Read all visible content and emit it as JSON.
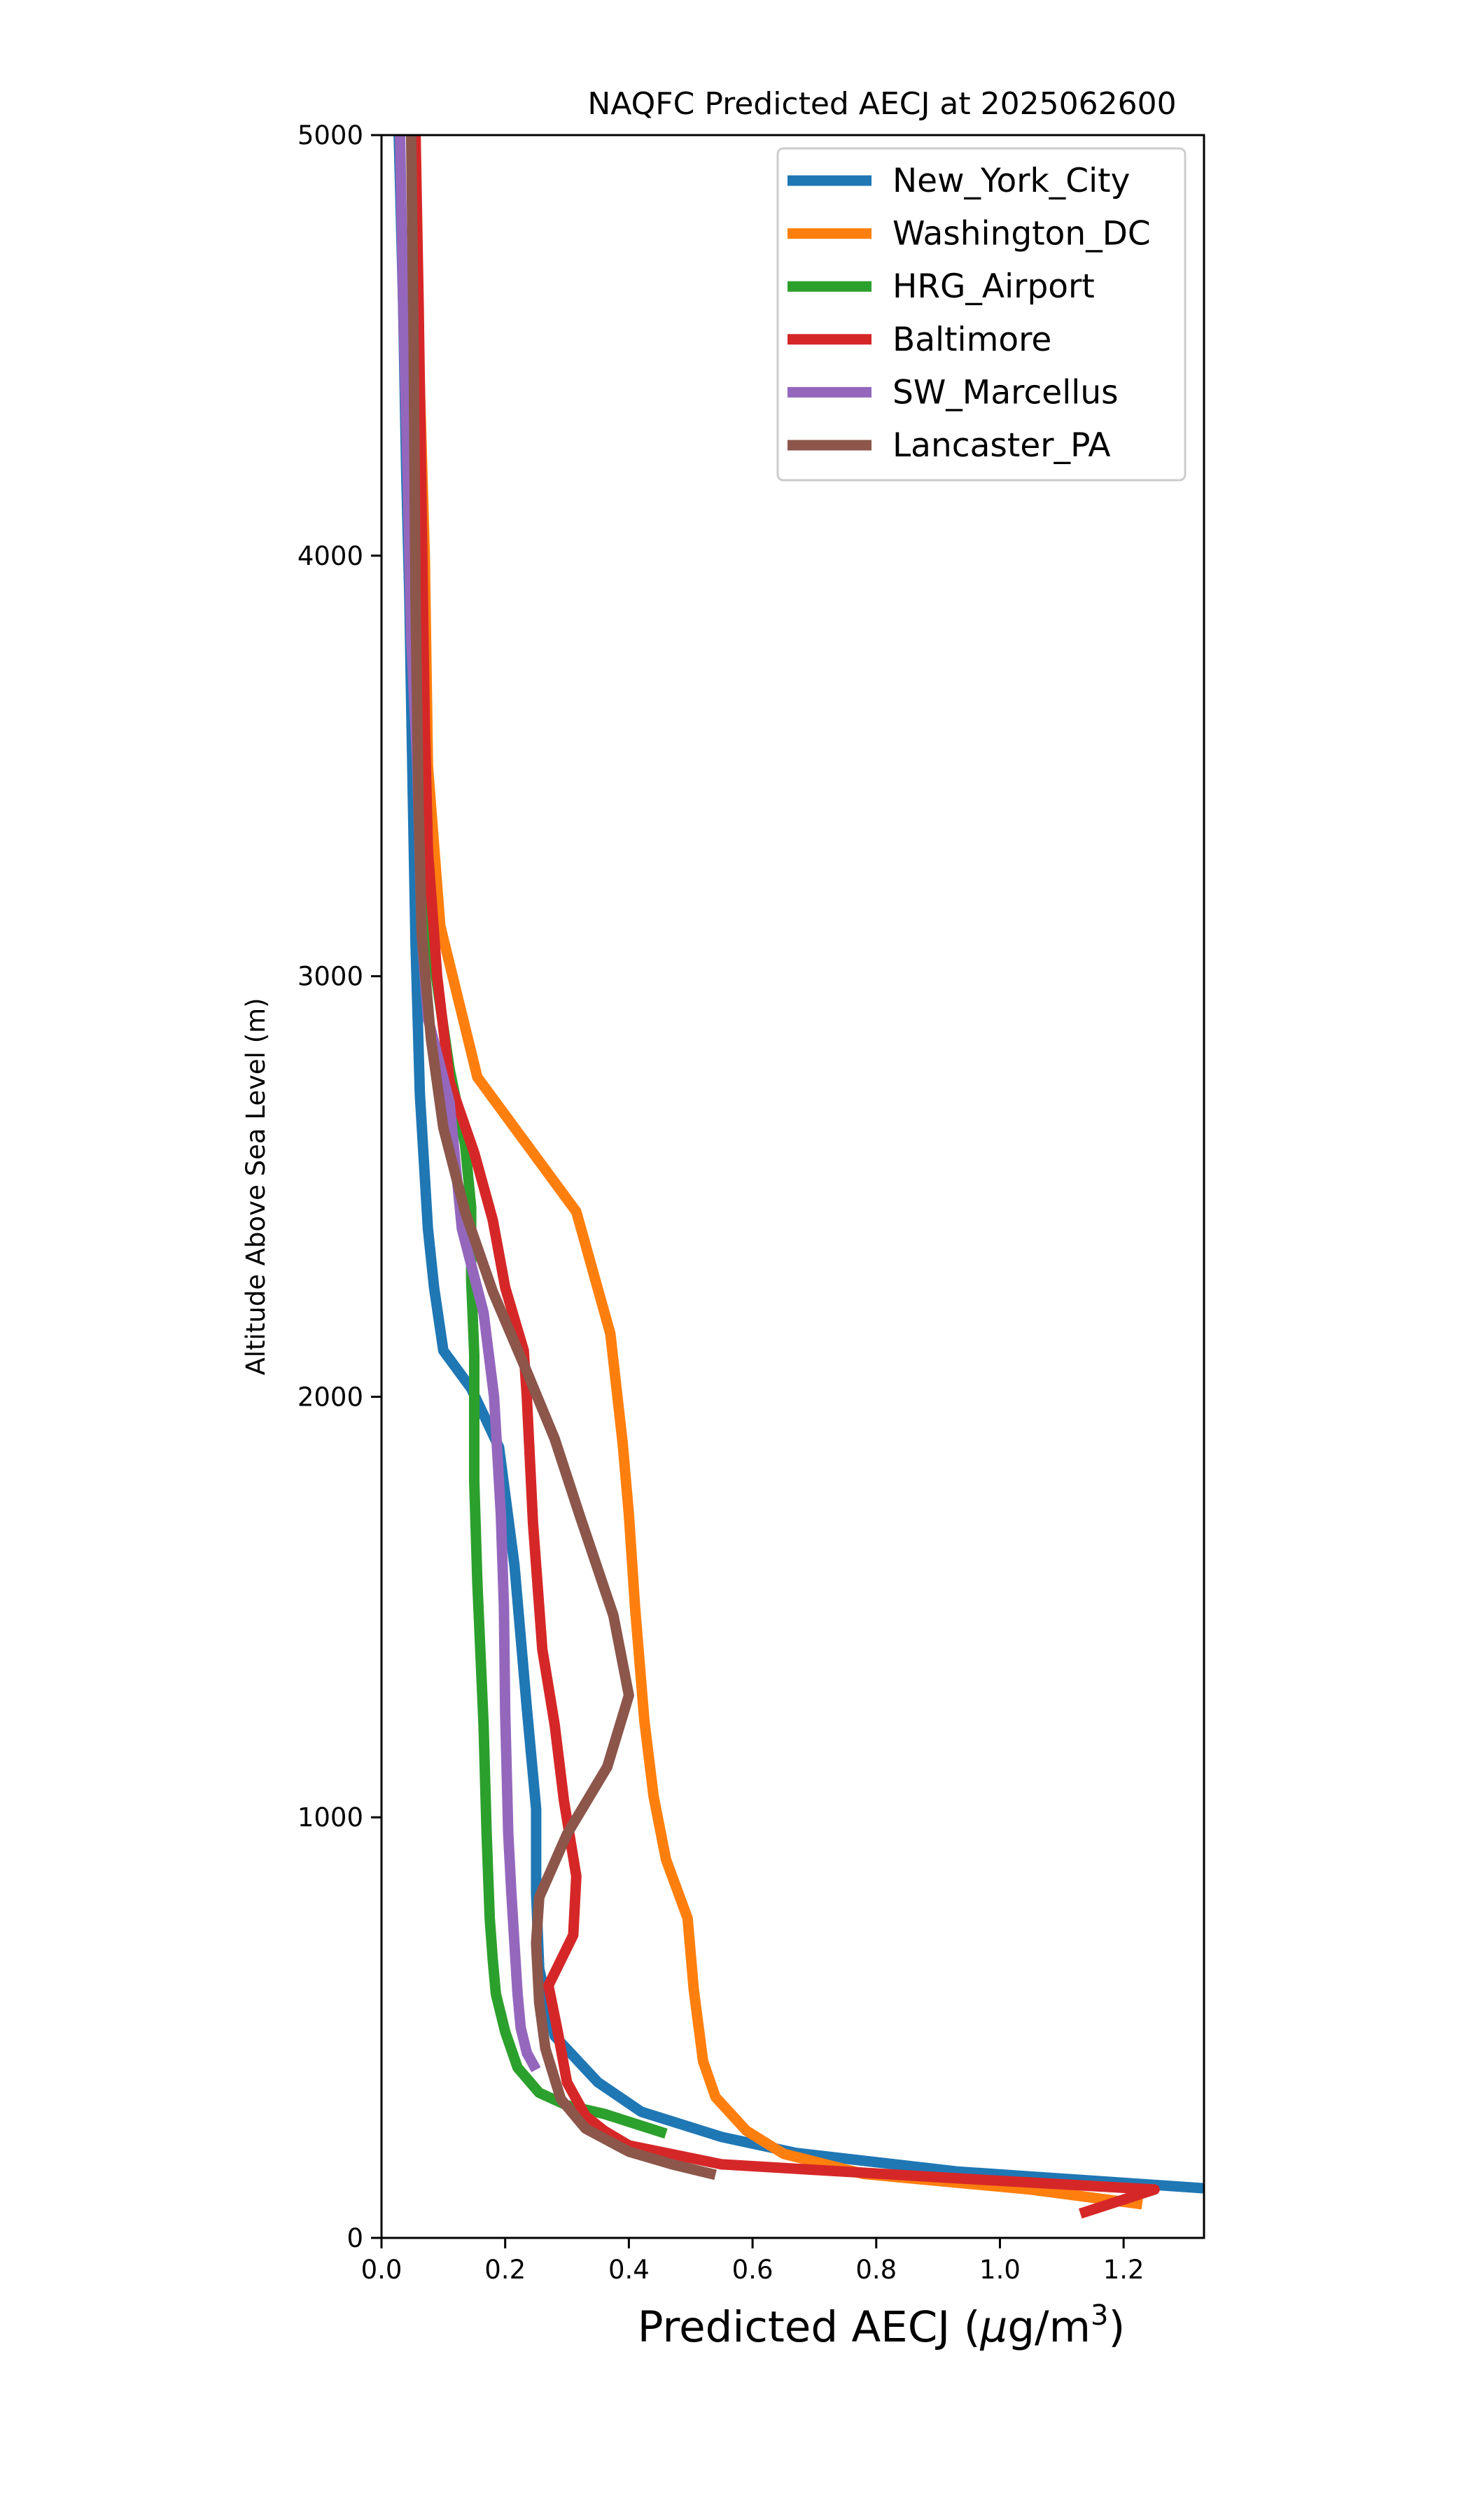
{
  "chart_data": {
    "type": "line",
    "title": "NAQFC Predicted AECJ at 2025062600",
    "xlabel": "Predicted AECJ (μg/m³)",
    "xlabel_base": "Predicted AECJ (",
    "xlabel_mu": "μ",
    "xlabel_unit": "g/m",
    "xlabel_sup": "3",
    "xlabel_close": ")",
    "ylabel": "Altitude Above Sea Level (m)",
    "xlim": [
      0,
      1.33
    ],
    "ylim": [
      0,
      5000
    ],
    "xticks": [
      0.0,
      0.2,
      0.4,
      0.6,
      0.8,
      1.0,
      1.2
    ],
    "xtick_labels": [
      "0.0",
      "0.2",
      "0.4",
      "0.6",
      "0.8",
      "1.0",
      "1.2"
    ],
    "yticks": [
      0,
      1000,
      2000,
      3000,
      4000,
      5000
    ],
    "ytick_labels": [
      "0",
      "1000",
      "2000",
      "3000",
      "4000",
      "5000"
    ],
    "legend_position": "top-right",
    "grid": false,
    "series": [
      {
        "name": "New_York_City",
        "color": "#1f77b4",
        "points": [
          [
            1.33,
            118
          ],
          [
            0.93,
            158
          ],
          [
            0.67,
            202
          ],
          [
            0.55,
            240
          ],
          [
            0.42,
            300
          ],
          [
            0.35,
            370
          ],
          [
            0.28,
            480
          ],
          [
            0.255,
            640
          ],
          [
            0.25,
            820
          ],
          [
            0.25,
            1020
          ],
          [
            0.235,
            1260
          ],
          [
            0.215,
            1600
          ],
          [
            0.19,
            1880
          ],
          [
            0.145,
            2020
          ],
          [
            0.1,
            2110
          ],
          [
            0.085,
            2260
          ],
          [
            0.075,
            2400
          ],
          [
            0.062,
            2720
          ],
          [
            0.055,
            3080
          ],
          [
            0.05,
            3480
          ],
          [
            0.045,
            3900
          ],
          [
            0.04,
            4200
          ],
          [
            0.035,
            4600
          ],
          [
            0.028,
            5000
          ]
        ]
      },
      {
        "name": "Washington_DC",
        "color": "#ff7f0e",
        "points": [
          [
            1.23,
            80
          ],
          [
            1.05,
            115
          ],
          [
            0.78,
            152
          ],
          [
            0.65,
            200
          ],
          [
            0.59,
            255
          ],
          [
            0.54,
            335
          ],
          [
            0.52,
            420
          ],
          [
            0.505,
            590
          ],
          [
            0.495,
            760
          ],
          [
            0.46,
            900
          ],
          [
            0.44,
            1050
          ],
          [
            0.425,
            1230
          ],
          [
            0.41,
            1500
          ],
          [
            0.4,
            1720
          ],
          [
            0.39,
            1890
          ],
          [
            0.37,
            2150
          ],
          [
            0.315,
            2440
          ],
          [
            0.155,
            2760
          ],
          [
            0.095,
            3120
          ],
          [
            0.075,
            3500
          ],
          [
            0.07,
            4000
          ],
          [
            0.06,
            4500
          ],
          [
            0.055,
            5000
          ]
        ]
      },
      {
        "name": "HRG_Airport",
        "color": "#2ca02c",
        "points": [
          [
            0.46,
            248
          ],
          [
            0.36,
            295
          ],
          [
            0.3,
            315
          ],
          [
            0.255,
            345
          ],
          [
            0.22,
            405
          ],
          [
            0.2,
            490
          ],
          [
            0.185,
            580
          ],
          [
            0.18,
            660
          ],
          [
            0.175,
            760
          ],
          [
            0.17,
            960
          ],
          [
            0.165,
            1220
          ],
          [
            0.155,
            1560
          ],
          [
            0.15,
            1800
          ],
          [
            0.15,
            2100
          ],
          [
            0.145,
            2280
          ],
          [
            0.145,
            2450
          ],
          [
            0.135,
            2600
          ],
          [
            0.11,
            2780
          ],
          [
            0.08,
            3080
          ],
          [
            0.06,
            3500
          ],
          [
            0.055,
            4000
          ],
          [
            0.053,
            4500
          ],
          [
            0.05,
            5000
          ]
        ]
      },
      {
        "name": "Baltimore",
        "color": "#d62728",
        "points": [
          [
            1.13,
            58
          ],
          [
            1.25,
            115
          ],
          [
            0.95,
            140
          ],
          [
            0.55,
            175
          ],
          [
            0.4,
            220
          ],
          [
            0.36,
            255
          ],
          [
            0.33,
            290
          ],
          [
            0.3,
            370
          ],
          [
            0.285,
            490
          ],
          [
            0.27,
            600
          ],
          [
            0.31,
            720
          ],
          [
            0.315,
            860
          ],
          [
            0.295,
            1040
          ],
          [
            0.28,
            1220
          ],
          [
            0.26,
            1400
          ],
          [
            0.245,
            1700
          ],
          [
            0.235,
            2000
          ],
          [
            0.23,
            2110
          ],
          [
            0.2,
            2260
          ],
          [
            0.18,
            2420
          ],
          [
            0.15,
            2580
          ],
          [
            0.11,
            2750
          ],
          [
            0.09,
            3000
          ],
          [
            0.075,
            3300
          ],
          [
            0.07,
            3600
          ],
          [
            0.065,
            4100
          ],
          [
            0.06,
            4600
          ],
          [
            0.055,
            5000
          ]
        ]
      },
      {
        "name": "SW_Marcellus",
        "color": "#9467bd",
        "points": [
          [
            0.25,
            400
          ],
          [
            0.235,
            440
          ],
          [
            0.225,
            500
          ],
          [
            0.22,
            580
          ],
          [
            0.215,
            700
          ],
          [
            0.21,
            820
          ],
          [
            0.205,
            960
          ],
          [
            0.2,
            1250
          ],
          [
            0.198,
            1500
          ],
          [
            0.193,
            1720
          ],
          [
            0.182,
            2000
          ],
          [
            0.165,
            2200
          ],
          [
            0.13,
            2400
          ],
          [
            0.11,
            2700
          ],
          [
            0.075,
            2900
          ],
          [
            0.065,
            3100
          ],
          [
            0.058,
            3500
          ],
          [
            0.048,
            3800
          ],
          [
            0.042,
            4200
          ],
          [
            0.035,
            4600
          ],
          [
            0.03,
            5000
          ]
        ]
      },
      {
        "name": "Lancaster_PA",
        "color": "#8c564b",
        "points": [
          [
            0.54,
            150
          ],
          [
            0.47,
            175
          ],
          [
            0.4,
            205
          ],
          [
            0.33,
            260
          ],
          [
            0.29,
            330
          ],
          [
            0.265,
            450
          ],
          [
            0.255,
            560
          ],
          [
            0.25,
            700
          ],
          [
            0.255,
            810
          ],
          [
            0.3,
            960
          ],
          [
            0.365,
            1120
          ],
          [
            0.4,
            1290
          ],
          [
            0.375,
            1480
          ],
          [
            0.32,
            1720
          ],
          [
            0.28,
            1900
          ],
          [
            0.235,
            2060
          ],
          [
            0.18,
            2250
          ],
          [
            0.135,
            2440
          ],
          [
            0.1,
            2640
          ],
          [
            0.08,
            2850
          ],
          [
            0.065,
            3100
          ],
          [
            0.06,
            3400
          ],
          [
            0.055,
            3900
          ],
          [
            0.052,
            4500
          ],
          [
            0.048,
            5000
          ]
        ]
      }
    ]
  }
}
